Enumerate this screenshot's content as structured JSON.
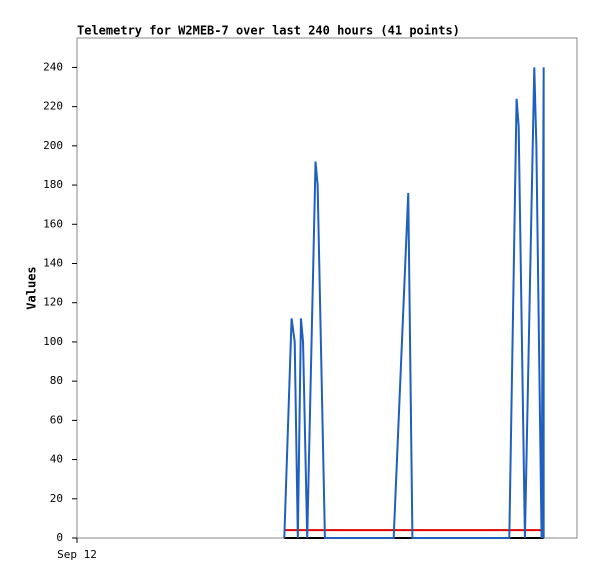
{
  "chart_data": {
    "type": "line",
    "title": "Telemetry for W2MEB-7 over last 240 hours (41 points)",
    "ylabel": "Values",
    "xlim": [
      0,
      240
    ],
    "xticks": [
      {
        "value": 0,
        "label": "Sep 12"
      }
    ],
    "ylim": [
      0,
      255
    ],
    "yticks": [
      0,
      20,
      40,
      60,
      80,
      100,
      120,
      140,
      160,
      180,
      200,
      220,
      240
    ],
    "series": [
      {
        "color": "#1f5fbf",
        "x": [
          99.5,
          103,
          104.5,
          106,
          107.5,
          108.5,
          110.5,
          114.5,
          115.5,
          119,
          152,
          159,
          161,
          207.5,
          211,
          212,
          215,
          219.5,
          220.5,
          223,
          224,
          224
        ],
        "values": [
          0,
          112,
          100,
          0,
          112,
          100,
          0,
          192,
          180,
          0,
          0,
          176,
          0,
          0,
          224,
          210,
          0,
          240,
          200,
          0,
          240,
          0
        ]
      },
      {
        "color": "#e00000",
        "x": [
          99.5,
          224
        ],
        "values": [
          4,
          4
        ]
      },
      {
        "color": "#000000",
        "x": [
          99.5,
          224
        ],
        "values": [
          0,
          0
        ]
      }
    ]
  }
}
